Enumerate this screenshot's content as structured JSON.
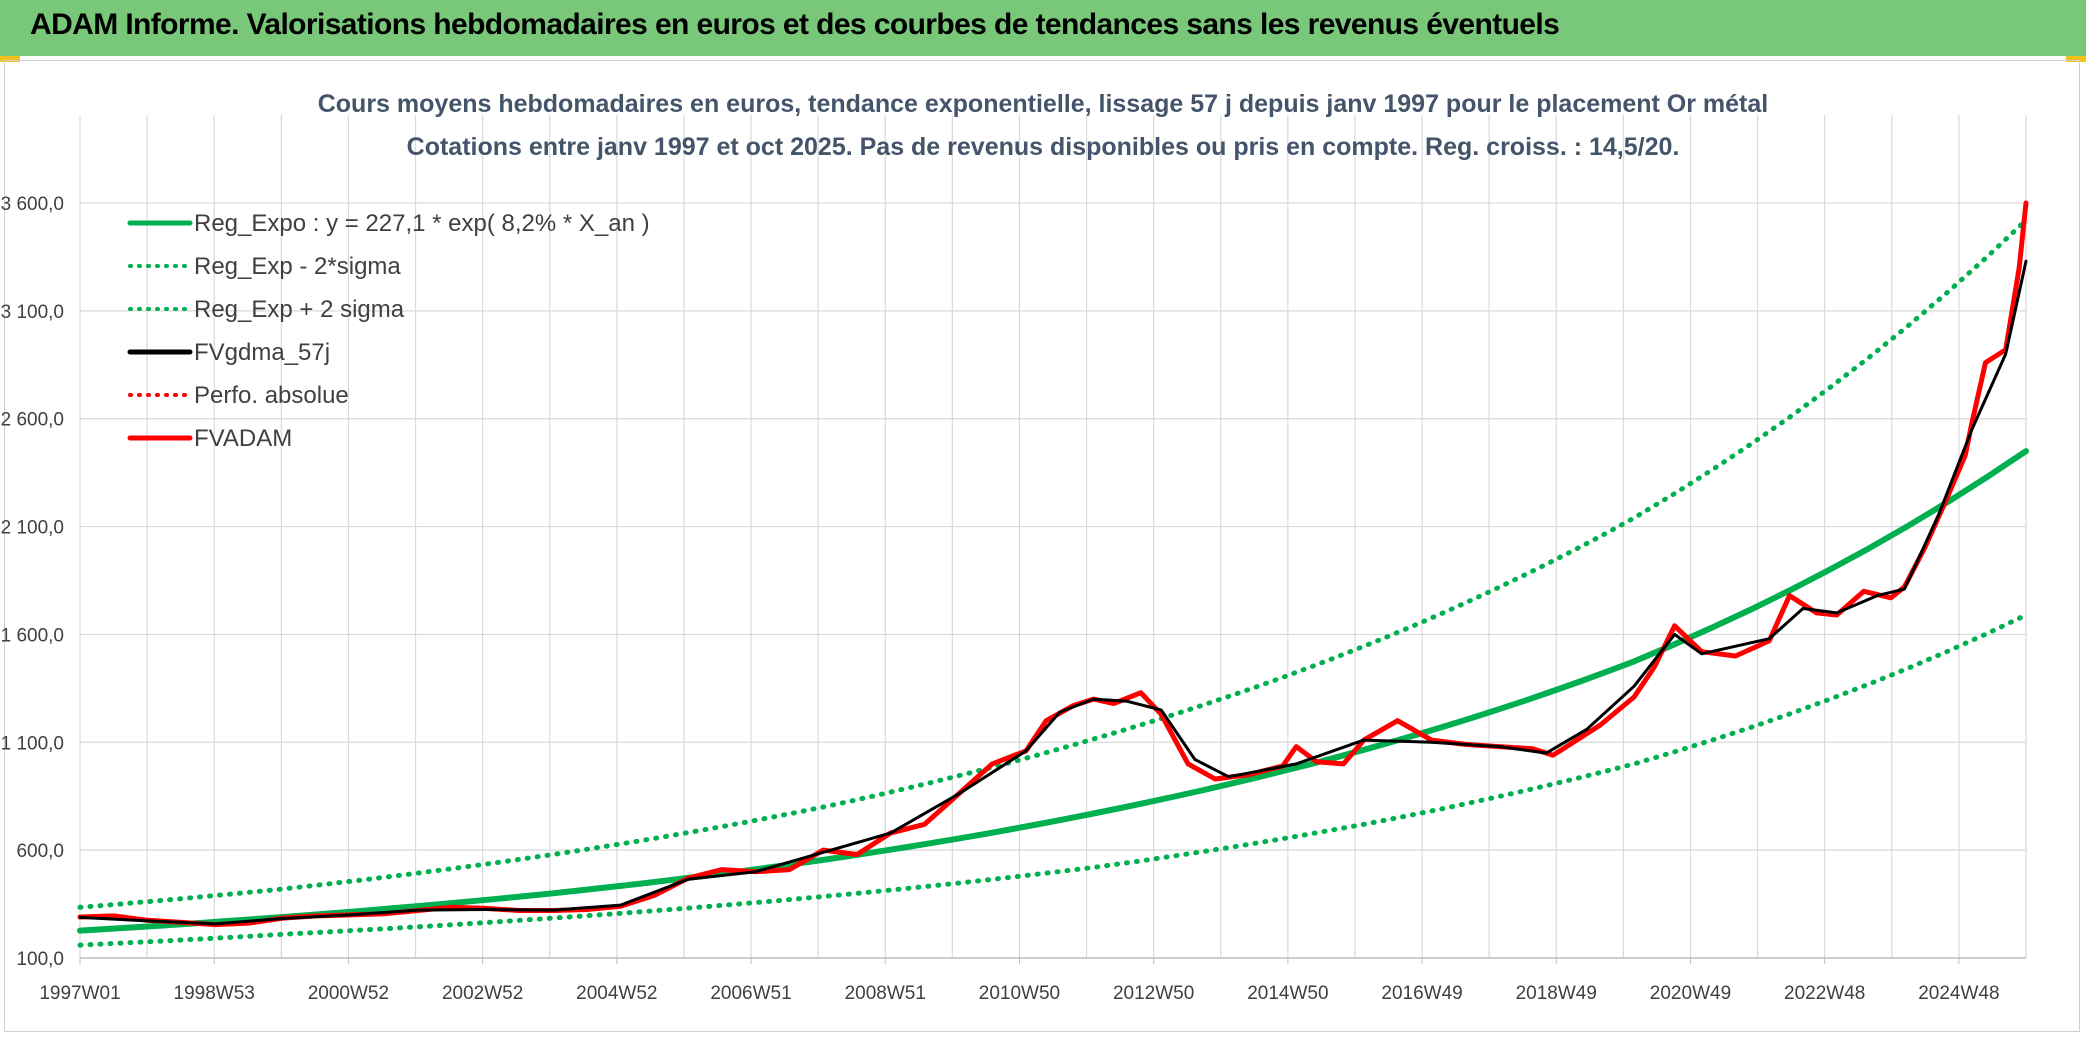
{
  "header": {
    "title": "ADAM Informe. Valorisations hebdomadaires en euros et des courbes de tendances sans les revenus éventuels"
  },
  "colors": {
    "banner": "#79c879",
    "trend": "#00b050",
    "smooth": "#000000",
    "price": "#ff0000",
    "grid": "#d9d9d9"
  },
  "chart_data": {
    "type": "line",
    "title": "Cours moyens hebdomadaires en euros, tendance exponentielle, lissage 57 j depuis janv 1997 pour le placement Or métal",
    "subtitle": "Cotations entre janv 1997 et oct 2025. Pas de revenus disponibles ou pris en compte. Reg. croiss. : 14,5/20.",
    "ylim": [
      100,
      3600
    ],
    "y_ticks": [
      "100,0",
      "600,0",
      "1 100,0",
      "1 600,0",
      "2 100,0",
      "2 600,0",
      "3 100,0",
      "3 600,0"
    ],
    "x_ticks": [
      "1997W01",
      "1998W53",
      "2000W52",
      "2002W52",
      "2004W52",
      "2006W51",
      "2008W51",
      "2010W50",
      "2012W50",
      "2014W50",
      "2016W49",
      "2018W49",
      "2020W49",
      "2022W48",
      "2024W48"
    ],
    "x_range_years": [
      1997.0,
      2025.8
    ],
    "grid": true,
    "legend_position": "top-left",
    "legend": [
      {
        "label": "Reg_Expo : y = 227,1 * exp( 8,2% *  X_an )",
        "color": "#00b050",
        "style": "solid"
      },
      {
        "label": "Reg_Exp - 2*sigma",
        "color": "#00b050",
        "style": "dotted"
      },
      {
        "label": "Reg_Exp + 2 sigma",
        "color": "#00b050",
        "style": "dotted"
      },
      {
        "label": "FVgdma_57j",
        "color": "#000000",
        "style": "solid"
      },
      {
        "label": "Perfo. absolue",
        "color": "#ff0000",
        "style": "dotted"
      },
      {
        "label": "FVADAM",
        "color": "#ff0000",
        "style": "solid"
      }
    ],
    "series": [
      {
        "name": "Reg_Expo : y = 227,1 * exp( 8,2% *  X_an )",
        "x": [
          1997.0,
          2000.0,
          2004.0,
          2008.0,
          2012.0,
          2016.0,
          2020.0,
          2025.8
        ],
        "values": [
          227,
          290,
          400,
          555,
          770,
          1065,
          1475,
          2450
        ]
      },
      {
        "name": "Reg_Exp - 2*sigma",
        "x": [
          1997.0,
          2000.0,
          2004.0,
          2008.0,
          2012.0,
          2016.0,
          2020.0,
          2025.8
        ],
        "values": [
          160,
          210,
          285,
          385,
          520,
          720,
          1000,
          1690
        ]
      },
      {
        "name": "Reg_Exp + 2 sigma",
        "x": [
          1997.0,
          2000.0,
          2004.0,
          2008.0,
          2012.0,
          2016.0,
          2020.0,
          2025.8
        ],
        "values": [
          335,
          420,
          580,
          800,
          1115,
          1545,
          2140,
          3520
        ]
      },
      {
        "name": "FVADAM",
        "x": [
          1997.0,
          1997.5,
          1998.0,
          1998.5,
          1999.0,
          1999.5,
          2000.0,
          2000.5,
          2001.0,
          2001.5,
          2002.0,
          2002.5,
          2003.0,
          2003.5,
          2004.0,
          2004.5,
          2005.0,
          2005.5,
          2006.0,
          2006.5,
          2007.0,
          2007.5,
          2008.0,
          2008.5,
          2009.0,
          2009.5,
          2010.0,
          2010.5,
          2011.0,
          2011.3,
          2011.7,
          2012.0,
          2012.3,
          2012.7,
          2013.0,
          2013.4,
          2013.8,
          2014.3,
          2014.8,
          2015.0,
          2015.3,
          2015.7,
          2016.0,
          2016.5,
          2017.0,
          2017.5,
          2018.0,
          2018.5,
          2018.8,
          2019.0,
          2019.5,
          2020.0,
          2020.3,
          2020.6,
          2021.0,
          2021.5,
          2022.0,
          2022.3,
          2022.7,
          2023.0,
          2023.4,
          2023.8,
          2024.0,
          2024.3,
          2024.6,
          2024.9,
          2025.0,
          2025.2,
          2025.5,
          2025.7,
          2025.8
        ],
        "values": [
          290,
          295,
          275,
          265,
          255,
          262,
          285,
          295,
          300,
          305,
          320,
          335,
          330,
          320,
          320,
          325,
          340,
          390,
          470,
          510,
          500,
          510,
          600,
          580,
          680,
          720,
          860,
          1000,
          1060,
          1200,
          1270,
          1300,
          1280,
          1330,
          1230,
          1000,
          930,
          950,
          990,
          1080,
          1010,
          1000,
          1110,
          1200,
          1110,
          1090,
          1080,
          1070,
          1040,
          1080,
          1180,
          1310,
          1450,
          1640,
          1520,
          1500,
          1570,
          1780,
          1700,
          1690,
          1800,
          1770,
          1820,
          2000,
          2210,
          2430,
          2580,
          2860,
          2920,
          3300,
          3600
        ]
      },
      {
        "name": "FVgdma_57j",
        "x": [
          1997.0,
          1998.0,
          1999.0,
          2000.0,
          2001.0,
          2002.0,
          2003.0,
          2004.0,
          2005.0,
          2006.0,
          2007.0,
          2008.0,
          2009.0,
          2010.0,
          2011.0,
          2011.5,
          2012.0,
          2012.5,
          2013.0,
          2013.5,
          2014.0,
          2015.0,
          2016.0,
          2017.0,
          2018.0,
          2018.7,
          2019.3,
          2020.0,
          2020.6,
          2021.0,
          2022.0,
          2022.5,
          2023.0,
          2023.6,
          2024.0,
          2024.5,
          2025.0,
          2025.5,
          2025.8
        ],
        "values": [
          288,
          272,
          258,
          283,
          300,
          322,
          325,
          322,
          345,
          465,
          500,
          590,
          680,
          860,
          1060,
          1240,
          1300,
          1290,
          1250,
          1020,
          940,
          1000,
          1110,
          1100,
          1080,
          1050,
          1160,
          1360,
          1600,
          1510,
          1580,
          1720,
          1700,
          1780,
          1810,
          2150,
          2550,
          2900,
          3330
        ]
      }
    ]
  }
}
